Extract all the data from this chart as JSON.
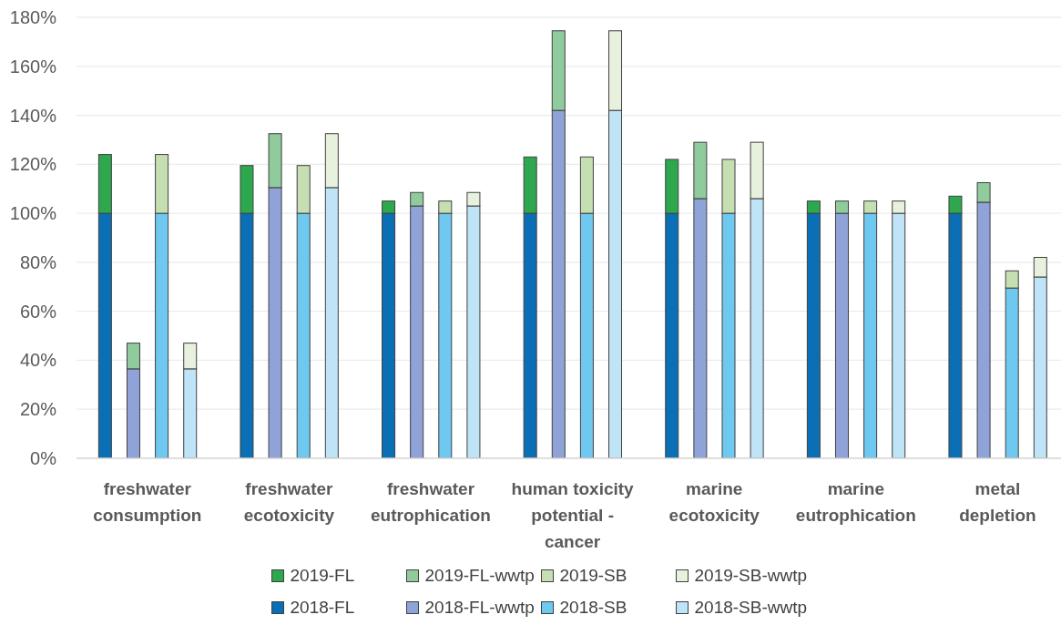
{
  "chart_data": {
    "type": "bar",
    "stacked": true,
    "categories": [
      null,
      null,
      null,
      null,
      "freshwater consumption",
      null,
      null,
      null,
      null,
      null,
      null,
      null,
      null,
      null,
      "freshwater ecotoxicity",
      null,
      null,
      null,
      null,
      null,
      null,
      null,
      null,
      null,
      "freshwater eutrophication",
      null,
      null,
      null,
      null,
      null,
      null,
      null,
      null,
      null,
      "human toxicity potential - cancer",
      null,
      null,
      null,
      null,
      null,
      null,
      null,
      null,
      null,
      "marine ecotoxicity",
      null,
      null,
      null,
      null,
      null,
      null,
      null,
      null,
      null,
      "marine eutrophication",
      null,
      null,
      null,
      null,
      null,
      null,
      null,
      null,
      null,
      "metal depletion",
      null,
      null,
      null,
      null,
      null
    ],
    "series": [
      {
        "name": "2018-FL",
        "color": "#0b6fb5",
        "values": [
          null,
          100,
          null,
          null,
          null,
          null,
          null,
          null,
          null,
          null,
          null,
          100,
          null,
          null,
          null,
          null,
          null,
          null,
          null,
          null,
          null,
          100,
          null,
          null,
          null,
          null,
          null,
          null,
          null,
          null,
          null,
          100,
          null,
          null,
          null,
          null,
          null,
          null,
          null,
          null,
          null,
          100,
          null,
          null,
          null,
          null,
          null,
          null,
          null,
          null,
          null,
          100,
          null,
          null,
          null,
          null,
          null,
          null,
          null,
          null,
          null,
          100,
          null,
          null,
          null,
          null,
          null,
          null,
          null,
          null
        ]
      },
      {
        "name": "2018-FL-wwtp",
        "color": "#8fa3d8",
        "values": [
          null,
          null,
          null,
          36.5,
          null,
          null,
          null,
          null,
          null,
          null,
          null,
          null,
          null,
          110.5,
          null,
          null,
          null,
          null,
          null,
          null,
          null,
          null,
          null,
          103,
          null,
          null,
          null,
          null,
          null,
          null,
          null,
          null,
          null,
          142,
          null,
          null,
          null,
          null,
          null,
          null,
          null,
          null,
          null,
          106,
          null,
          null,
          null,
          null,
          null,
          null,
          null,
          null,
          null,
          100,
          null,
          null,
          null,
          null,
          null,
          null,
          null,
          null,
          null,
          104.5,
          null,
          null,
          null,
          null,
          null,
          null
        ]
      },
      {
        "name": "2018-SB",
        "color": "#6fc8f0",
        "values": [
          null,
          null,
          null,
          null,
          null,
          100,
          null,
          null,
          null,
          null,
          null,
          null,
          null,
          null,
          null,
          100,
          null,
          null,
          null,
          null,
          null,
          null,
          null,
          null,
          null,
          100,
          null,
          null,
          null,
          null,
          null,
          null,
          null,
          null,
          null,
          100,
          null,
          null,
          null,
          null,
          null,
          null,
          null,
          null,
          null,
          100,
          null,
          null,
          null,
          null,
          null,
          null,
          null,
          null,
          null,
          100,
          null,
          null,
          null,
          null,
          null,
          null,
          null,
          null,
          null,
          69.5,
          null,
          null,
          null,
          null
        ]
      },
      {
        "name": "2018-SB-wwtp",
        "color": "#bfe3f7",
        "values": [
          null,
          null,
          null,
          null,
          null,
          null,
          null,
          36.5,
          null,
          null,
          null,
          null,
          null,
          null,
          null,
          null,
          null,
          110.5,
          null,
          null,
          null,
          null,
          null,
          null,
          null,
          null,
          null,
          103,
          null,
          null,
          null,
          null,
          null,
          null,
          null,
          null,
          null,
          142,
          null,
          null,
          null,
          null,
          null,
          null,
          null,
          null,
          null,
          106,
          null,
          null,
          null,
          null,
          null,
          null,
          null,
          null,
          null,
          100,
          null,
          null,
          null,
          null,
          null,
          null,
          null,
          null,
          null,
          74,
          null,
          null
        ]
      },
      {
        "name": "2019-FL",
        "color": "#2ea84f",
        "values": [
          null,
          24,
          null,
          null,
          null,
          null,
          null,
          null,
          null,
          null,
          null,
          19.5,
          null,
          null,
          null,
          null,
          null,
          null,
          null,
          null,
          null,
          5,
          null,
          null,
          null,
          null,
          null,
          null,
          null,
          null,
          null,
          23,
          null,
          null,
          null,
          null,
          null,
          null,
          null,
          null,
          null,
          22,
          null,
          null,
          null,
          null,
          null,
          null,
          null,
          null,
          null,
          5,
          null,
          null,
          null,
          null,
          null,
          null,
          null,
          null,
          null,
          7,
          null,
          null,
          null,
          null,
          null,
          null,
          null,
          null
        ]
      },
      {
        "name": "2019-FL-wwtp",
        "color": "#8fcb9c",
        "values": [
          null,
          null,
          null,
          10.5,
          null,
          null,
          null,
          null,
          null,
          null,
          null,
          null,
          null,
          22,
          null,
          null,
          null,
          null,
          null,
          null,
          null,
          null,
          null,
          5.5,
          null,
          null,
          null,
          null,
          null,
          null,
          null,
          null,
          null,
          32.5,
          null,
          null,
          null,
          null,
          null,
          null,
          null,
          null,
          null,
          23,
          null,
          null,
          null,
          null,
          null,
          null,
          null,
          null,
          null,
          5,
          null,
          null,
          null,
          null,
          null,
          null,
          null,
          null,
          null,
          8,
          null,
          null,
          null,
          null,
          null,
          null
        ]
      },
      {
        "name": "2019-SB",
        "color": "#c5dfb3",
        "values": [
          null,
          null,
          null,
          null,
          null,
          24,
          null,
          null,
          null,
          null,
          null,
          null,
          null,
          null,
          null,
          19.5,
          null,
          null,
          null,
          null,
          null,
          null,
          null,
          null,
          null,
          5,
          null,
          null,
          null,
          null,
          null,
          null,
          null,
          null,
          null,
          23,
          null,
          null,
          null,
          null,
          null,
          null,
          null,
          null,
          null,
          22,
          null,
          null,
          null,
          null,
          null,
          null,
          null,
          null,
          null,
          5,
          null,
          null,
          null,
          null,
          null,
          null,
          null,
          null,
          null,
          7,
          null,
          null,
          null,
          null
        ]
      },
      {
        "name": "2019-SB-wwtp",
        "color": "#e8f1de",
        "values": [
          null,
          null,
          null,
          null,
          null,
          null,
          null,
          10.5,
          null,
          null,
          null,
          null,
          null,
          null,
          null,
          null,
          null,
          22,
          null,
          null,
          null,
          null,
          null,
          null,
          null,
          null,
          null,
          5.5,
          null,
          null,
          null,
          null,
          null,
          null,
          null,
          null,
          null,
          32.5,
          null,
          null,
          null,
          null,
          null,
          null,
          null,
          null,
          null,
          23,
          null,
          null,
          null,
          null,
          null,
          null,
          null,
          null,
          null,
          5,
          null,
          null,
          null,
          null,
          null,
          null,
          null,
          null,
          null,
          8,
          null,
          null
        ]
      }
    ],
    "ylim": [
      0,
      180
    ],
    "yticks": [
      {
        "value": 0,
        "label": "0%"
      },
      {
        "value": 20,
        "label": "20%"
      },
      {
        "value": 40,
        "label": "40%"
      },
      {
        "value": 60,
        "label": "60%"
      },
      {
        "value": 80,
        "label": "80%"
      },
      {
        "value": 100,
        "label": "100%"
      },
      {
        "value": 120,
        "label": "120%"
      },
      {
        "value": 140,
        "label": "140%"
      },
      {
        "value": 160,
        "label": "160%"
      },
      {
        "value": 180,
        "label": "180%"
      }
    ],
    "grid": "y",
    "legend": "bottom"
  }
}
